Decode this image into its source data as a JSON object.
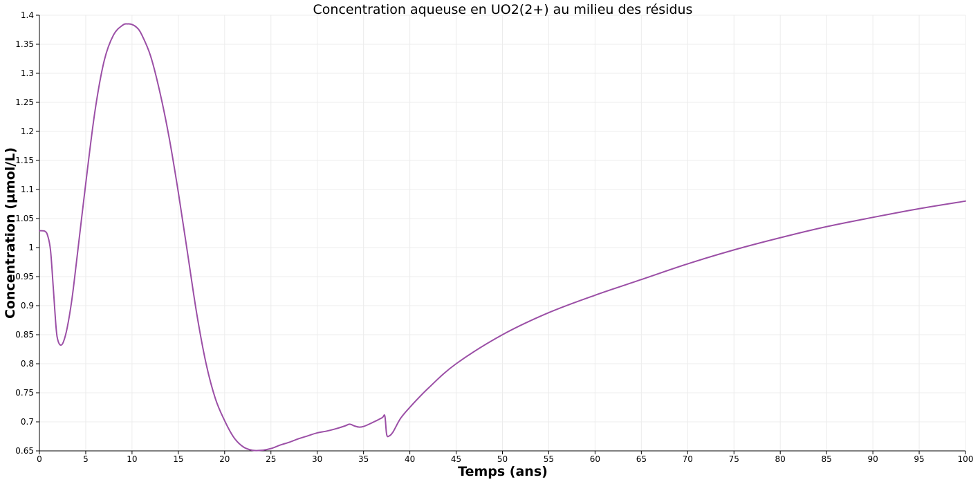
{
  "chart_data": {
    "type": "line",
    "title": "Concentration aqueuse en UO2(2+) au milieu des résidus",
    "xlabel": "Temps (ans)",
    "ylabel": "Concentration (µmol/L)",
    "xlim": [
      0,
      100
    ],
    "ylim": [
      0.65,
      1.4
    ],
    "x_ticks": [
      0,
      5,
      10,
      15,
      20,
      25,
      30,
      35,
      40,
      45,
      50,
      55,
      60,
      65,
      70,
      75,
      80,
      85,
      90,
      95,
      100
    ],
    "x_tick_labels": [
      "0",
      "5",
      "10",
      "15",
      "20",
      "25",
      "30",
      "35",
      "40",
      "45",
      "50",
      "55",
      "60",
      "65",
      "70",
      "75",
      "80",
      "85",
      "90",
      "95",
      "100"
    ],
    "y_ticks": [
      0.65,
      0.7,
      0.75,
      0.8,
      0.85,
      0.9,
      0.95,
      1,
      1.05,
      1.1,
      1.15,
      1.2,
      1.25,
      1.3,
      1.35,
      1.4
    ],
    "y_tick_labels": [
      "0.65",
      "0.7",
      "0.75",
      "0.8",
      "0.85",
      "0.9",
      "0.95",
      "1",
      "1.05",
      "1.1",
      "1.15",
      "1.2",
      "1.25",
      "1.3",
      "1.35",
      "1.4"
    ],
    "grid": true,
    "line_color": "#9b4fa6",
    "series": [
      {
        "x": [
          0,
          0.6,
          0.9,
          1.2,
          1.5,
          1.8,
          2.0,
          2.3,
          2.6,
          3.0,
          3.5,
          4.0,
          5.0,
          6.0,
          7.0,
          8.0,
          9.0,
          9.5,
          10.0,
          10.5,
          11.0,
          12.0,
          13.0,
          14.0,
          15.0,
          16.0,
          17.0,
          18.0,
          19.0,
          20.0,
          21.0,
          22.0,
          23.0,
          24.0,
          25.0,
          26.0,
          27.0,
          28.0,
          29.0,
          30.0,
          31.0,
          32.0,
          33.0,
          33.5,
          34.0,
          34.5,
          35.0,
          36.0,
          37.0,
          37.3,
          37.5,
          37.8,
          38.2,
          39.0,
          40.0,
          42.0,
          45.0,
          50.0,
          55.0,
          60.0,
          65.0,
          70.0,
          75.0,
          80.0,
          85.0,
          90.0,
          95.0,
          100.0
        ],
        "y": [
          1.029,
          1.028,
          1.02,
          0.995,
          0.93,
          0.862,
          0.84,
          0.832,
          0.838,
          0.862,
          0.91,
          0.975,
          1.11,
          1.235,
          1.322,
          1.366,
          1.383,
          1.385,
          1.384,
          1.379,
          1.368,
          1.33,
          1.268,
          1.19,
          1.095,
          0.99,
          0.885,
          0.8,
          0.74,
          0.702,
          0.673,
          0.657,
          0.651,
          0.651,
          0.654,
          0.66,
          0.665,
          0.671,
          0.676,
          0.681,
          0.684,
          0.688,
          0.693,
          0.696,
          0.693,
          0.691,
          0.692,
          0.699,
          0.707,
          0.71,
          0.678,
          0.676,
          0.683,
          0.706,
          0.725,
          0.758,
          0.8,
          0.85,
          0.888,
          0.918,
          0.945,
          0.972,
          0.996,
          1.017,
          1.036,
          1.052,
          1.067,
          1.08
        ]
      }
    ]
  }
}
